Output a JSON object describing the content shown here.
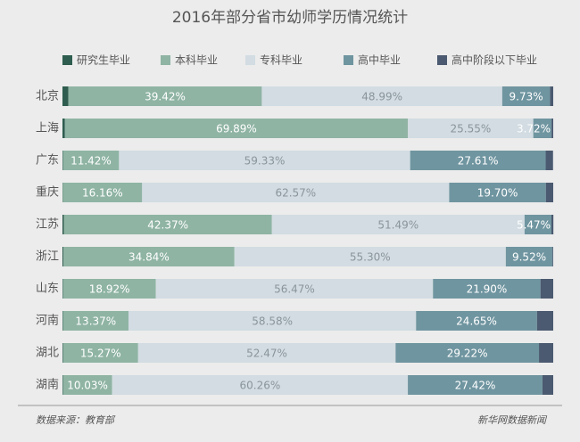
{
  "chart_data": {
    "type": "stacked-bar",
    "orientation": "horizontal",
    "title": "2016年部分省市幼师学历情况统计",
    "categories": [
      "北京",
      "上海",
      "广东",
      "重庆",
      "江苏",
      "浙江",
      "山东",
      "河南",
      "湖北",
      "湖南"
    ],
    "xlim": [
      0,
      100
    ],
    "series": [
      {
        "name": "研究生毕业",
        "color": "#2f5d4f",
        "values": [
          1.2,
          0.5,
          0.1,
          0.07,
          0.3,
          0.2,
          0.11,
          0.1,
          0.14,
          0.09
        ]
      },
      {
        "name": "本科毕业",
        "color": "#8fb4a4",
        "values": [
          39.42,
          69.89,
          11.42,
          16.16,
          42.37,
          34.84,
          18.92,
          13.37,
          15.27,
          10.03
        ],
        "value_labels": [
          "39.42%",
          "69.89%",
          "11.42%",
          "16.16%",
          "42.37%",
          "34.84%",
          "18.92%",
          "13.37%",
          "15.27%",
          "10.03%"
        ]
      },
      {
        "name": "专科毕业",
        "color": "#d2dce2",
        "values": [
          48.99,
          25.55,
          59.33,
          62.57,
          51.49,
          55.3,
          56.47,
          58.58,
          52.47,
          60.26
        ],
        "value_labels": [
          "48.99%",
          "25.55%",
          "59.33%",
          "62.57%",
          "51.49%",
          "55.30%",
          "56.47%",
          "58.58%",
          "52.47%",
          "60.26%"
        ]
      },
      {
        "name": "高中毕业",
        "color": "#6f95a0",
        "values": [
          9.73,
          3.72,
          27.61,
          19.7,
          5.47,
          9.52,
          21.9,
          24.65,
          29.22,
          27.42
        ],
        "value_labels": [
          "9.73%",
          "3.72%",
          "27.61%",
          "19.70%",
          "5.47%",
          "9.52%",
          "21.90%",
          "24.65%",
          "29.22%",
          "27.42%"
        ]
      },
      {
        "name": "高中阶段以下毕业",
        "color": "#4b5a70",
        "values": [
          0.66,
          0.34,
          1.5,
          1.5,
          0.4,
          0.14,
          2.6,
          3.3,
          2.9,
          2.2
        ]
      }
    ],
    "source": "数据来源：教育部",
    "credit": "新华网数据新闻"
  }
}
